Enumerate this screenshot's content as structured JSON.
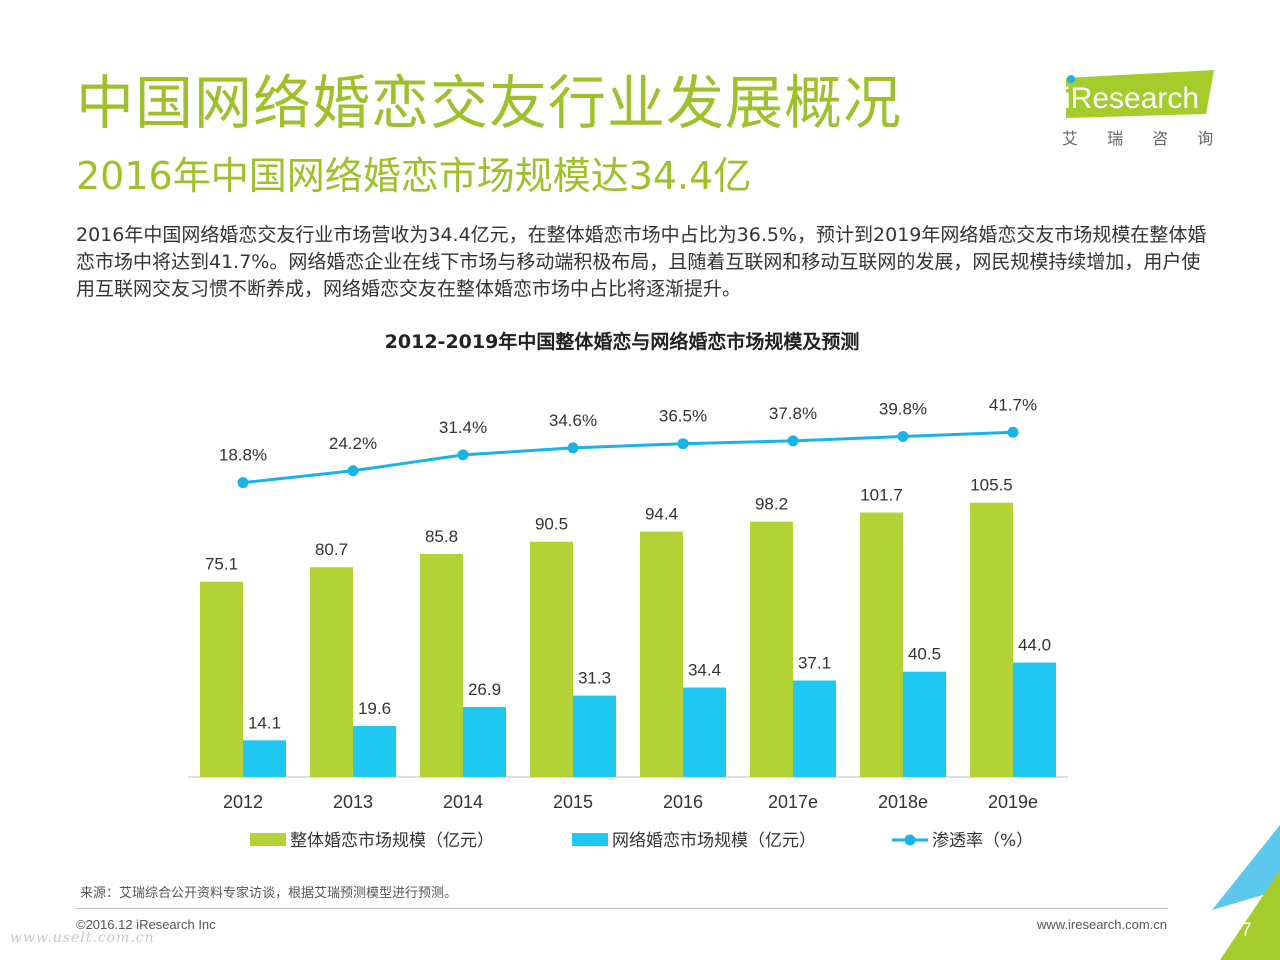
{
  "header": {
    "title": "中国网络婚恋交友行业发展概况",
    "subtitle": "2016年中国网络婚恋市场规模达34.4亿",
    "intro": "2016年中国网络婚恋交友行业市场营收为34.4亿元，在整体婚恋市场中占比为36.5%，预计到2019年网络婚恋交友市场规模在整体婚恋市场中将达到41.7%。网络婚恋企业在线下市场与移动端积极布局，且随着互联网和移动互联网的发展，网民规模持续增加，用户使用互联网交友习惯不断养成，网络婚恋交友在整体婚恋市场中占比将逐渐提升。"
  },
  "logo": {
    "wordmark": "iResearch",
    "cn": "艾 瑞 咨 询"
  },
  "chart_data": {
    "type": "bar",
    "title": "2012-2019年中国整体婚恋与网络婚恋市场规模及预测",
    "categories": [
      "2012",
      "2013",
      "2014",
      "2015",
      "2016",
      "2017e",
      "2018e",
      "2019e"
    ],
    "series": [
      {
        "name": "整体婚恋市场规模（亿元）",
        "type": "bar",
        "color": "#b2d235",
        "values": [
          75.1,
          80.7,
          85.8,
          90.5,
          94.4,
          98.2,
          101.7,
          105.5
        ],
        "labels": [
          "75.1",
          "80.7",
          "85.8",
          "90.5",
          "94.4",
          "98.2",
          "101.7",
          "105.5"
        ]
      },
      {
        "name": "网络婚恋市场规模（亿元）",
        "type": "bar",
        "color": "#1ec8f0",
        "values": [
          14.1,
          19.6,
          26.9,
          31.3,
          34.4,
          37.1,
          40.5,
          44.0
        ],
        "labels": [
          "14.1",
          "19.6",
          "26.9",
          "31.3",
          "34.4",
          "37.1",
          "40.5",
          "44.0"
        ]
      },
      {
        "name": "渗透率（%）",
        "type": "line",
        "color": "#1ab3e6",
        "values": [
          18.8,
          24.2,
          31.4,
          34.6,
          36.5,
          37.8,
          39.8,
          41.7
        ],
        "labels": [
          "18.8%",
          "24.2%",
          "31.4%",
          "34.6%",
          "36.5%",
          "37.8%",
          "39.8%",
          "41.7%"
        ]
      }
    ],
    "legend_position": "bottom",
    "grid": false
  },
  "footer": {
    "source": "来源：艾瑞综合公开资料专家访谈，根据艾瑞预测模型进行预测。",
    "copyright": "©2016.12 iResearch Inc",
    "website": "www.iresearch.com.cn",
    "page_number": "7",
    "watermark": "www.uselt.com.cn"
  }
}
